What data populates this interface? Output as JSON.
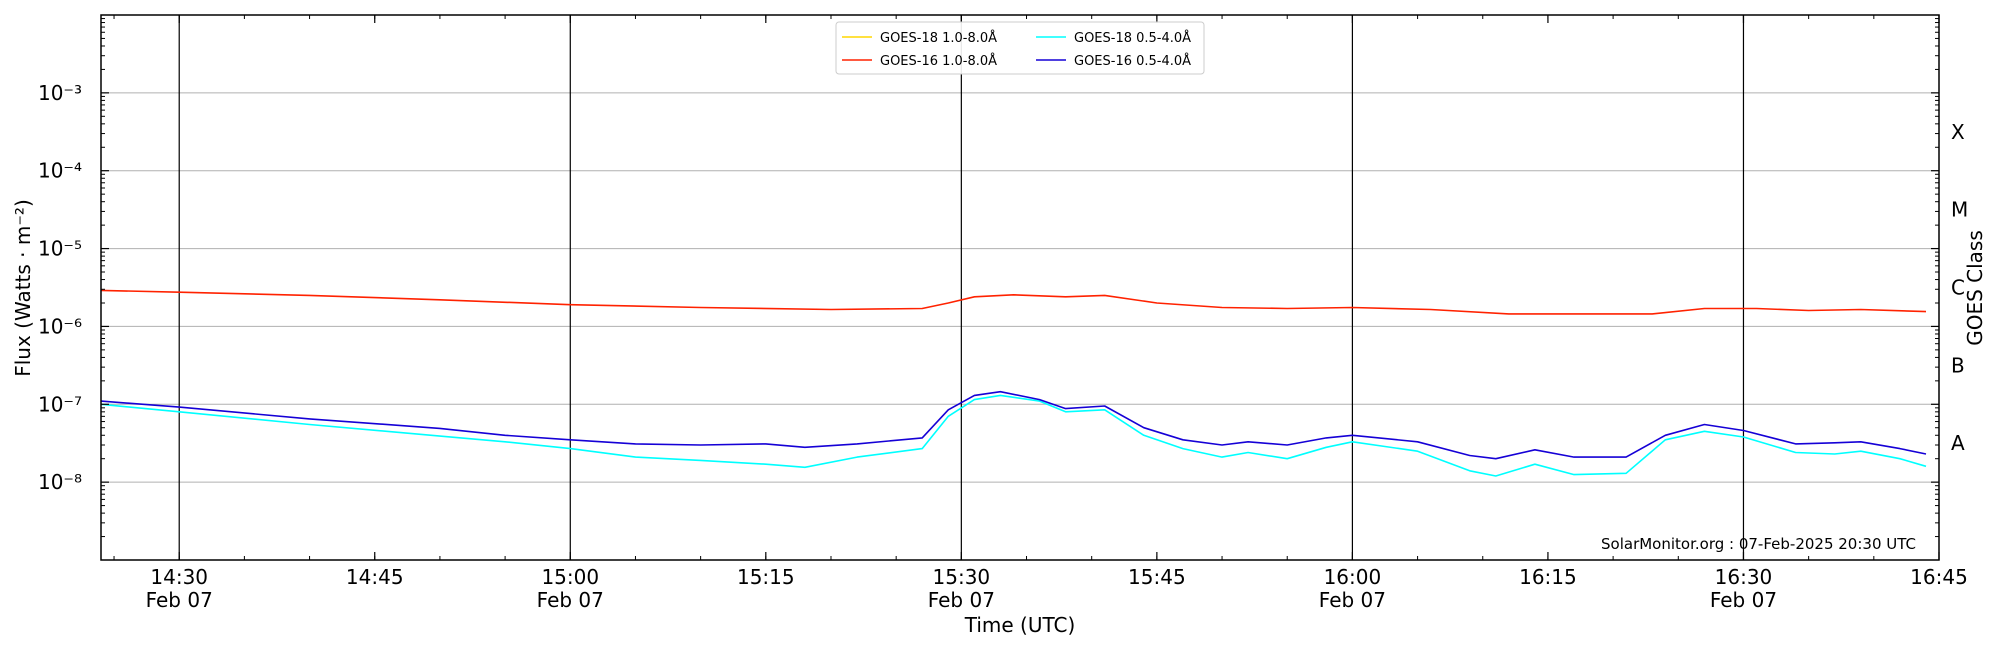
{
  "chart_data": {
    "type": "line",
    "xlabel": "Time (UTC)",
    "ylabel": "Flux (Watts · m⁻²)",
    "ylabel_right": "GOES Class",
    "y_scale": "log",
    "ylim": [
      1e-09,
      0.01
    ],
    "xlim": [
      "14:24",
      "16:45"
    ],
    "grid": "horizontal at decades",
    "legend_placement": "top-center",
    "credit": "SolarMonitor.org : 07-Feb-2025 20:30 UTC",
    "y_ticks": [
      {
        "value": 1e-08,
        "label": "10⁻⁸"
      },
      {
        "value": 1e-07,
        "label": "10⁻⁷"
      },
      {
        "value": 1e-06,
        "label": "10⁻⁶"
      },
      {
        "value": 1e-05,
        "label": "10⁻⁵"
      },
      {
        "value": 0.0001,
        "label": "10⁻⁴"
      },
      {
        "value": 0.001,
        "label": "10⁻³"
      }
    ],
    "x_ticks": [
      {
        "time": "14:30",
        "label": "14:30",
        "date": "Feb 07"
      },
      {
        "time": "14:45",
        "label": "14:45",
        "date": ""
      },
      {
        "time": "15:00",
        "label": "15:00",
        "date": "Feb 07"
      },
      {
        "time": "15:15",
        "label": "15:15",
        "date": ""
      },
      {
        "time": "15:30",
        "label": "15:30",
        "date": "Feb 07"
      },
      {
        "time": "15:45",
        "label": "15:45",
        "date": ""
      },
      {
        "time": "16:00",
        "label": "16:00",
        "date": "Feb 07"
      },
      {
        "time": "16:15",
        "label": "16:15",
        "date": ""
      },
      {
        "time": "16:30",
        "label": "16:30",
        "date": "Feb 07"
      },
      {
        "time": "16:45",
        "label": "16:45",
        "date": ""
      }
    ],
    "vlines": [
      "14:30",
      "15:00",
      "15:30",
      "16:00",
      "16:30"
    ],
    "classes": [
      {
        "label": "X",
        "value": 0.000316
      },
      {
        "label": "M",
        "value": 3.16e-05
      },
      {
        "label": "C",
        "value": 3.16e-06
      },
      {
        "label": "B",
        "value": 3.16e-07
      },
      {
        "label": "A",
        "value": 3.16e-08
      }
    ],
    "series": [
      {
        "name": "GOES-18 1.0-8.0Å",
        "color": "#ffd700",
        "points": []
      },
      {
        "name": "GOES-16 1.0-8.0Å",
        "color": "#ff2200",
        "points": [
          [
            "14:24",
            2.9e-06
          ],
          [
            "14:30",
            2.75e-06
          ],
          [
            "14:40",
            2.5e-06
          ],
          [
            "14:50",
            2.2e-06
          ],
          [
            "15:00",
            1.9e-06
          ],
          [
            "15:10",
            1.75e-06
          ],
          [
            "15:20",
            1.65e-06
          ],
          [
            "15:27",
            1.7e-06
          ],
          [
            "15:29",
            2e-06
          ],
          [
            "15:31",
            2.4e-06
          ],
          [
            "15:34",
            2.55e-06
          ],
          [
            "15:38",
            2.4e-06
          ],
          [
            "15:41",
            2.5e-06
          ],
          [
            "15:45",
            2e-06
          ],
          [
            "15:50",
            1.75e-06
          ],
          [
            "15:55",
            1.7e-06
          ],
          [
            "16:00",
            1.75e-06
          ],
          [
            "16:06",
            1.65e-06
          ],
          [
            "16:12",
            1.45e-06
          ],
          [
            "16:18",
            1.45e-06
          ],
          [
            "16:23",
            1.45e-06
          ],
          [
            "16:27",
            1.7e-06
          ],
          [
            "16:31",
            1.7e-06
          ],
          [
            "16:35",
            1.6e-06
          ],
          [
            "16:39",
            1.65e-06
          ],
          [
            "16:44",
            1.55e-06
          ]
        ]
      },
      {
        "name": "GOES-18 0.5-4.0Å",
        "color": "#00ffff",
        "points": [
          [
            "14:24",
            1e-07
          ],
          [
            "14:30",
            8e-08
          ],
          [
            "14:40",
            5.5e-08
          ],
          [
            "14:50",
            3.9e-08
          ],
          [
            "14:55",
            3.3e-08
          ],
          [
            "15:00",
            2.7e-08
          ],
          [
            "15:05",
            2.1e-08
          ],
          [
            "15:10",
            1.9e-08
          ],
          [
            "15:15",
            1.7e-08
          ],
          [
            "15:18",
            1.55e-08
          ],
          [
            "15:22",
            2.1e-08
          ],
          [
            "15:27",
            2.7e-08
          ],
          [
            "15:29",
            7e-08
          ],
          [
            "15:31",
            1.15e-07
          ],
          [
            "15:33",
            1.3e-07
          ],
          [
            "15:36",
            1.1e-07
          ],
          [
            "15:38",
            8e-08
          ],
          [
            "15:41",
            8.5e-08
          ],
          [
            "15:44",
            4e-08
          ],
          [
            "15:47",
            2.7e-08
          ],
          [
            "15:50",
            2.1e-08
          ],
          [
            "15:52",
            2.4e-08
          ],
          [
            "15:55",
            2e-08
          ],
          [
            "15:58",
            2.8e-08
          ],
          [
            "16:00",
            3.3e-08
          ],
          [
            "16:05",
            2.5e-08
          ],
          [
            "16:09",
            1.4e-08
          ],
          [
            "16:11",
            1.2e-08
          ],
          [
            "16:14",
            1.7e-08
          ],
          [
            "16:17",
            1.25e-08
          ],
          [
            "16:21",
            1.3e-08
          ],
          [
            "16:24",
            3.5e-08
          ],
          [
            "16:27",
            4.5e-08
          ],
          [
            "16:30",
            3.8e-08
          ],
          [
            "16:34",
            2.4e-08
          ],
          [
            "16:37",
            2.3e-08
          ],
          [
            "16:39",
            2.5e-08
          ],
          [
            "16:42",
            2e-08
          ],
          [
            "16:44",
            1.6e-08
          ]
        ]
      },
      {
        "name": "GOES-16 0.5-4.0Å",
        "color": "#1500d6",
        "points": [
          [
            "14:24",
            1.1e-07
          ],
          [
            "14:30",
            9.2e-08
          ],
          [
            "14:40",
            6.5e-08
          ],
          [
            "14:50",
            4.9e-08
          ],
          [
            "14:55",
            4e-08
          ],
          [
            "15:00",
            3.5e-08
          ],
          [
            "15:05",
            3.1e-08
          ],
          [
            "15:10",
            3e-08
          ],
          [
            "15:15",
            3.1e-08
          ],
          [
            "15:18",
            2.8e-08
          ],
          [
            "15:22",
            3.1e-08
          ],
          [
            "15:27",
            3.7e-08
          ],
          [
            "15:29",
            8.5e-08
          ],
          [
            "15:31",
            1.3e-07
          ],
          [
            "15:33",
            1.45e-07
          ],
          [
            "15:36",
            1.15e-07
          ],
          [
            "15:38",
            8.8e-08
          ],
          [
            "15:41",
            9.5e-08
          ],
          [
            "15:44",
            5e-08
          ],
          [
            "15:47",
            3.5e-08
          ],
          [
            "15:50",
            3e-08
          ],
          [
            "15:52",
            3.3e-08
          ],
          [
            "15:55",
            3e-08
          ],
          [
            "15:58",
            3.7e-08
          ],
          [
            "16:00",
            4e-08
          ],
          [
            "16:05",
            3.3e-08
          ],
          [
            "16:09",
            2.2e-08
          ],
          [
            "16:11",
            2e-08
          ],
          [
            "16:14",
            2.6e-08
          ],
          [
            "16:17",
            2.1e-08
          ],
          [
            "16:21",
            2.1e-08
          ],
          [
            "16:24",
            4e-08
          ],
          [
            "16:27",
            5.5e-08
          ],
          [
            "16:30",
            4.6e-08
          ],
          [
            "16:34",
            3.1e-08
          ],
          [
            "16:37",
            3.2e-08
          ],
          [
            "16:39",
            3.3e-08
          ],
          [
            "16:42",
            2.7e-08
          ],
          [
            "16:44",
            2.3e-08
          ]
        ]
      }
    ]
  }
}
